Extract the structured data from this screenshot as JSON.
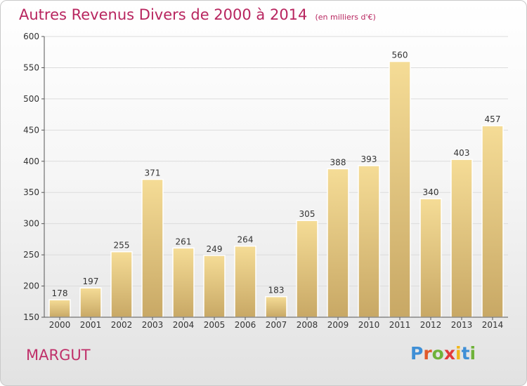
{
  "header": {
    "title": "Autres Revenus Divers de 2000 à 2014",
    "subtitle": "(en milliers d'€)"
  },
  "footer": {
    "commune": "MARGUT",
    "logo_letters": [
      {
        "ch": "P",
        "color": "#3f8fd6"
      },
      {
        "ch": "r",
        "color": "#e0592a"
      },
      {
        "ch": "o",
        "color": "#6fb23a"
      },
      {
        "ch": "x",
        "color": "#e23a3a"
      },
      {
        "ch": "i",
        "color": "#f2b619"
      },
      {
        "ch": "t",
        "color": "#3f8fd6"
      },
      {
        "ch": "i",
        "color": "#6fb23a"
      }
    ]
  },
  "chart_data": {
    "type": "bar",
    "title": "Autres Revenus Divers de 2000 à 2014",
    "subtitle": "(en milliers d'€)",
    "categories": [
      "2000",
      "2001",
      "2002",
      "2003",
      "2004",
      "2005",
      "2006",
      "2007",
      "2008",
      "2009",
      "2010",
      "2011",
      "2012",
      "2013",
      "2014"
    ],
    "values": [
      178,
      197,
      255,
      371,
      261,
      249,
      264,
      183,
      305,
      388,
      393,
      560,
      340,
      403,
      457
    ],
    "ylim": [
      150,
      600
    ],
    "yticks": [
      150,
      200,
      250,
      300,
      350,
      400,
      450,
      500,
      550,
      600
    ],
    "grid": "horizontal",
    "bar_color_top": "#f5dc96",
    "bar_color_bottom": "#c8a865"
  }
}
